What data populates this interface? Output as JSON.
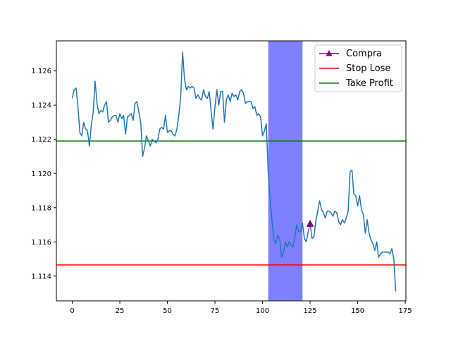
{
  "chart_data": {
    "type": "line",
    "title": "",
    "xlabel": "",
    "ylabel": "",
    "xlim": [
      -8.35,
      175.35
    ],
    "ylim": [
      1.11255,
      1.12776
    ],
    "x_ticks": [
      0,
      25,
      50,
      75,
      100,
      125,
      150,
      175
    ],
    "y_ticks": [
      1.114,
      1.116,
      1.118,
      1.12,
      1.122,
      1.124,
      1.126
    ],
    "x_tick_labels": [
      "0",
      "25",
      "50",
      "75",
      "100",
      "125",
      "150",
      "175"
    ],
    "y_tick_labels": [
      "1.114",
      "1.116",
      "1.118",
      "1.120",
      "1.122",
      "1.124",
      "1.126"
    ],
    "grid": false,
    "legend_position": "top-right",
    "shaded_region": {
      "x_start": 103,
      "x_end": 121,
      "color": "#8080ff"
    },
    "series": [
      {
        "name": "",
        "color": "#1f77b4",
        "kind": "line",
        "values": [
          1.1244,
          1.1249,
          1.125,
          1.1239,
          1.1224,
          1.1222,
          1.123,
          1.1226,
          1.1225,
          1.1216,
          1.1228,
          1.1236,
          1.1254,
          1.1241,
          1.1235,
          1.1237,
          1.1236,
          1.124,
          1.1242,
          1.123,
          1.1231,
          1.1233,
          1.1234,
          1.1234,
          1.123,
          1.1235,
          1.1232,
          1.1234,
          1.1223,
          1.1233,
          1.1234,
          1.1235,
          1.1231,
          1.1241,
          1.1242,
          1.1236,
          1.123,
          1.121,
          1.1215,
          1.1222,
          1.1219,
          1.1216,
          1.122,
          1.1219,
          1.1218,
          1.122,
          1.1226,
          1.1227,
          1.1226,
          1.1234,
          1.1224,
          1.1225,
          1.1225,
          1.1223,
          1.1222,
          1.1226,
          1.1234,
          1.1245,
          1.1271,
          1.1255,
          1.1249,
          1.1251,
          1.125,
          1.1251,
          1.125,
          1.1244,
          1.1246,
          1.1244,
          1.1243,
          1.1249,
          1.1245,
          1.1244,
          1.1248,
          1.1236,
          1.1226,
          1.1239,
          1.1249,
          1.124,
          1.1248,
          1.1248,
          1.123,
          1.1243,
          1.1246,
          1.1242,
          1.1247,
          1.1245,
          1.1246,
          1.1243,
          1.1248,
          1.1249,
          1.1247,
          1.1241,
          1.1242,
          1.1242,
          1.1242,
          1.1238,
          1.1239,
          1.1234,
          1.1235,
          1.1233,
          1.1222,
          1.1225,
          1.1229,
          1.12,
          1.1185,
          1.1172,
          1.1161,
          1.1159,
          1.1164,
          1.1162,
          1.1151,
          1.1154,
          1.116,
          1.1157,
          1.116,
          1.1158,
          1.1157,
          1.1163,
          1.117,
          1.1166,
          1.1166,
          1.1171,
          1.1162,
          1.116,
          1.1166,
          1.1171,
          1.1162,
          1.1163,
          1.1172,
          1.1178,
          1.1184,
          1.1179,
          1.1177,
          1.1174,
          1.1178,
          1.1178,
          1.1177,
          1.1175,
          1.1178,
          1.1177,
          1.1172,
          1.117,
          1.1173,
          1.1171,
          1.1174,
          1.1178,
          1.1201,
          1.1202,
          1.1188,
          1.1187,
          1.1181,
          1.1187,
          1.1179,
          1.1176,
          1.1165,
          1.1173,
          1.1165,
          1.1161,
          1.1159,
          1.1155,
          1.116,
          1.1151,
          1.1153,
          1.1154,
          1.1154,
          1.1154,
          1.1154,
          1.1153,
          1.1156,
          1.115,
          1.1131
        ]
      },
      {
        "name": "Compra",
        "color": "#800080",
        "kind": "marker",
        "x": [
          125
        ],
        "values": [
          1.11705
        ]
      },
      {
        "name": "Stop Lose",
        "color": "#ff0000",
        "kind": "hline",
        "values": [
          1.11465
        ]
      },
      {
        "name": "Take Profit",
        "color": "#008000",
        "kind": "hline",
        "values": [
          1.1219
        ]
      }
    ]
  }
}
